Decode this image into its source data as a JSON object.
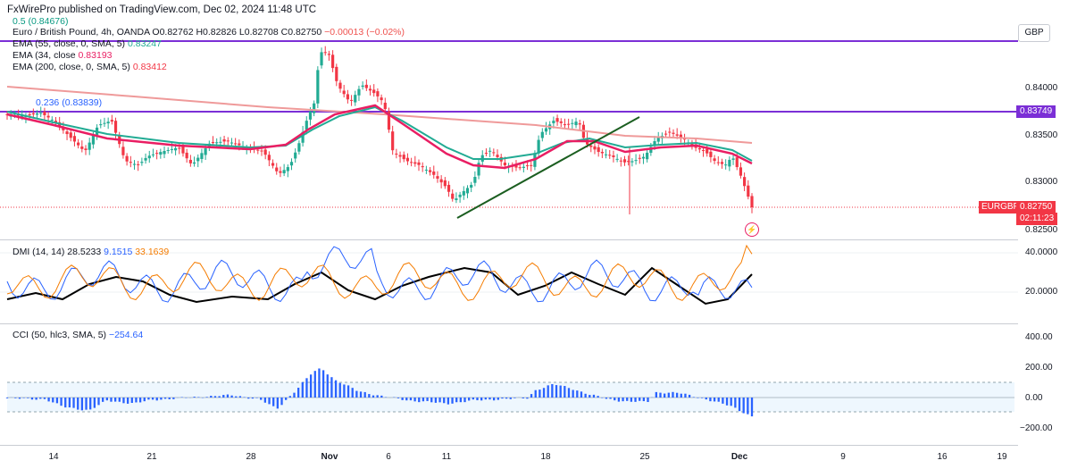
{
  "header": {
    "publisher_line": "FxWirePro published on TradingView.com, Dec 02, 2024 11:48 UTC"
  },
  "price_pane": {
    "fib_05": "0.5 (0.84676)",
    "symbol_line": {
      "name": "Euro / British Pound, 4h, OANDA",
      "ohlc": "O0.82762 H0.82826 L0.82708 C0.82750",
      "change": "−0.00013 (−0.02%)"
    },
    "ema55": {
      "label": "EMA (55, close, 0, SMA, 5)",
      "value": "0.83247"
    },
    "ema34": {
      "label": "EMA (34, close",
      "value": "0.83193"
    },
    "ema200": {
      "label": "EMA (200, close, 0, SMA, 5)",
      "value": "0.83412"
    },
    "fib_0236": "0.236 (0.83839)",
    "y_ticks": [
      "0.84000",
      "0.83500",
      "0.83000",
      "0.82500"
    ],
    "currency": "GBP",
    "level_tag": "0.83749",
    "symbol_tag": "EURGBP",
    "price_tag": "0.82750",
    "countdown": "02:11:23"
  },
  "dmi_pane": {
    "label": "DMI (14, 14)",
    "adx": "28.5233",
    "plus_di": "9.1515",
    "minus_di": "33.1639",
    "y_ticks": [
      "40.0000",
      "20.0000"
    ]
  },
  "cci_pane": {
    "label": "CCI (50, hlc3, SMA, 5)",
    "value": "−254.64",
    "y_ticks": [
      "400.00",
      "200.00",
      "0.00",
      "−200.00"
    ]
  },
  "x_axis": [
    "14",
    "21",
    "28",
    "Nov",
    "6",
    "11",
    "18",
    "25",
    "Dec",
    "9",
    "16",
    "19"
  ],
  "colors": {
    "up": "#22ab94",
    "down": "#f23645",
    "ema34": "#e91e63",
    "ema55": "#22ab94",
    "ema200": "#ef9a9a",
    "level_line": "#7b2fd6",
    "plus_di": "#2962ff",
    "minus_di": "#f57c00",
    "adx": "#000000",
    "cci": "#2962ff",
    "trendline": "#1b5e20"
  }
}
